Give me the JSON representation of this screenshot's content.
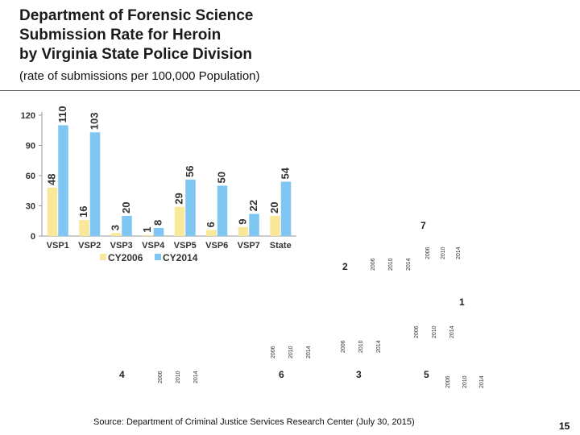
{
  "header": {
    "title_lines": [
      "Department of Forensic Science",
      "Submission Rate for Heroin",
      "by Virginia State Police Division"
    ],
    "subtitle": "(rate of submissions per 100,000 Population)"
  },
  "chart_data": {
    "type": "bar",
    "categories": [
      "VSP1",
      "VSP2",
      "VSP3",
      "VSP4",
      "VSP5",
      "VSP6",
      "VSP7",
      "State"
    ],
    "series": [
      {
        "name": "CY2006",
        "values": [
          48,
          16,
          3,
          1,
          29,
          6,
          9,
          20
        ],
        "color": "#f9e79a"
      },
      {
        "name": "CY2014",
        "values": [
          110,
          103,
          20,
          8,
          56,
          50,
          22,
          54
        ],
        "color": "#7fc6f2"
      }
    ],
    "y_ticks": [
      "0",
      "30",
      "60",
      "90",
      "120"
    ],
    "ylim": [
      0,
      120
    ],
    "legend_position": "bottom-left",
    "grid": false
  },
  "map_markers": [
    {
      "label": "7",
      "years": [
        "2006",
        "2010",
        "2014"
      ]
    },
    {
      "label": "2",
      "years": [
        "2006",
        "2010",
        "2014"
      ]
    },
    {
      "label": "1",
      "years": [
        "2006",
        "2010",
        "2014"
      ]
    },
    {
      "label": "3",
      "years": [
        "2006",
        "2010",
        "2014"
      ]
    },
    {
      "label": "4",
      "years": [
        "2006",
        "2010",
        "2014"
      ]
    },
    {
      "label": "6",
      "years": [
        "2006",
        "2010",
        "2014"
      ]
    },
    {
      "label": "5",
      "years": [
        "2006",
        "2010",
        "2014"
      ]
    }
  ],
  "footer": {
    "source": "Source:  Department of Criminal Justice Services Research Center (July 30, 2015)",
    "page_number": "15"
  }
}
